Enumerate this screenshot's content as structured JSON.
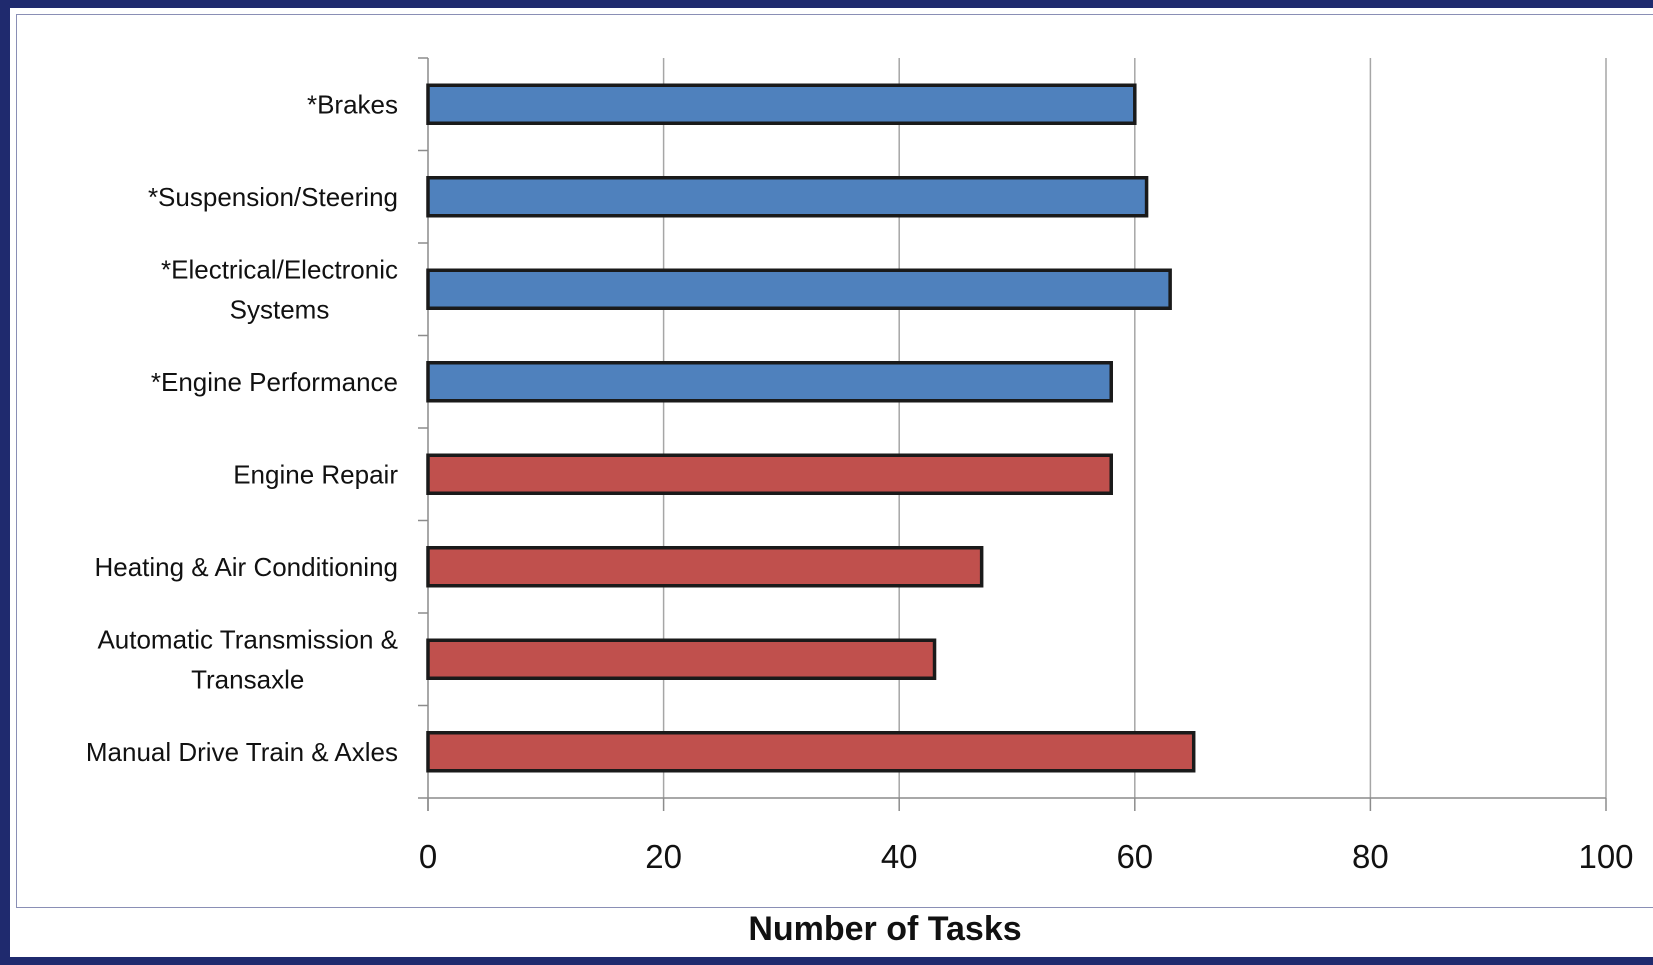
{
  "chart_data": {
    "type": "bar",
    "orientation": "horizontal",
    "title": "",
    "xlabel": "Number of Tasks",
    "ylabel": "",
    "xlim": [
      0,
      100
    ],
    "x_ticks": [
      0,
      20,
      40,
      60,
      80,
      100
    ],
    "grid": true,
    "legend": "none",
    "categories": [
      "*Brakes",
      "*Suspension/Steering",
      "*Electrical/Electronic Systems",
      "*Engine Performance",
      "Engine Repair",
      "Heating & Air Conditioning",
      "Automatic Transmission & Transaxle",
      "Manual Drive Train & Axles"
    ],
    "category_lines": [
      [
        "*Brakes"
      ],
      [
        "*Suspension/Steering"
      ],
      [
        "*Electrical/Electronic",
        "Systems"
      ],
      [
        "*Engine Performance"
      ],
      [
        "Engine Repair"
      ],
      [
        "Heating & Air Conditioning"
      ],
      [
        "Automatic Transmission &",
        "Transaxle"
      ],
      [
        "Manual Drive Train & Axles"
      ]
    ],
    "values": [
      60,
      61,
      63,
      58,
      58,
      47,
      43,
      65
    ],
    "bar_colors": [
      "#4f81bd",
      "#4f81bd",
      "#4f81bd",
      "#4f81bd",
      "#c0504d",
      "#c0504d",
      "#c0504d",
      "#c0504d"
    ]
  }
}
